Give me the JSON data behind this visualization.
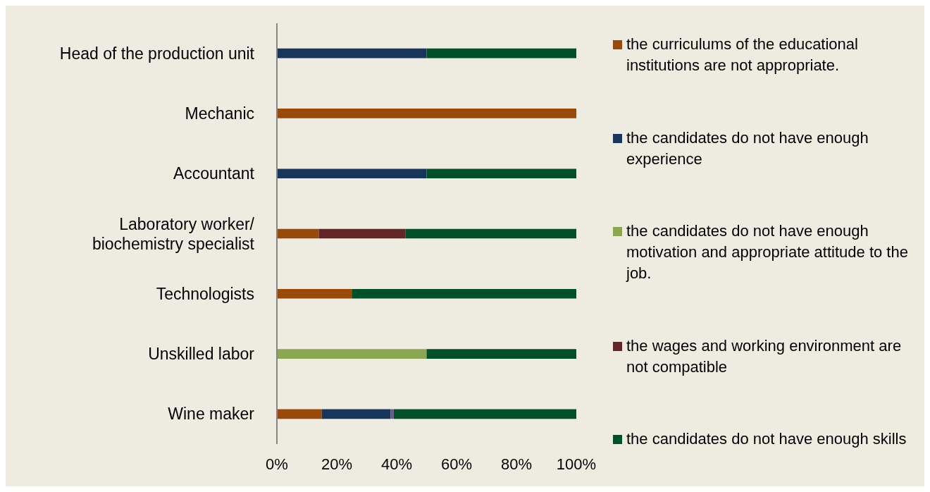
{
  "chart_data": {
    "type": "bar",
    "orientation": "horizontal",
    "stacked": true,
    "categories": [
      "Head of the production unit",
      "Mechanic",
      "Accountant",
      "Laboratory worker/ biochemistry specialist",
      "Technologists",
      "Unskilled labor",
      "Wine maker"
    ],
    "series": [
      {
        "name": "the curriculums of the educational institutions are not appropriate.",
        "color": "#994a08",
        "values": [
          0,
          100,
          0,
          14,
          25,
          0,
          15
        ]
      },
      {
        "name": "the candidates do not have enough experience",
        "color": "#18365c",
        "values": [
          50,
          0,
          50,
          0,
          0,
          0,
          23
        ]
      },
      {
        "name": "the candidates do not have enough motivation and appropriate attitude to the job.",
        "color": "#8aa650",
        "values": [
          0,
          0,
          0,
          0,
          0,
          50,
          0
        ]
      },
      {
        "name": "the wages and working environment are not compatible",
        "color": "#632526",
        "values": [
          0,
          0,
          0,
          29,
          0,
          0,
          0
        ]
      },
      {
        "color": "#6f5592",
        "values": [
          0,
          0,
          0,
          0,
          0,
          0,
          1
        ]
      },
      {
        "name": "the candidates do not have enough skills",
        "color": "#00502a",
        "values": [
          50,
          0,
          50,
          57,
          75,
          50,
          61
        ]
      }
    ],
    "xlim": [
      0,
      100
    ],
    "xticks": [
      {
        "value": 0,
        "label": "0%"
      },
      {
        "value": 20,
        "label": "20%"
      },
      {
        "value": 40,
        "label": "40%"
      },
      {
        "value": 60,
        "label": "60%"
      },
      {
        "value": 80,
        "label": "80%"
      },
      {
        "value": 100,
        "label": "100%"
      }
    ],
    "grid": false,
    "legend": "right"
  }
}
